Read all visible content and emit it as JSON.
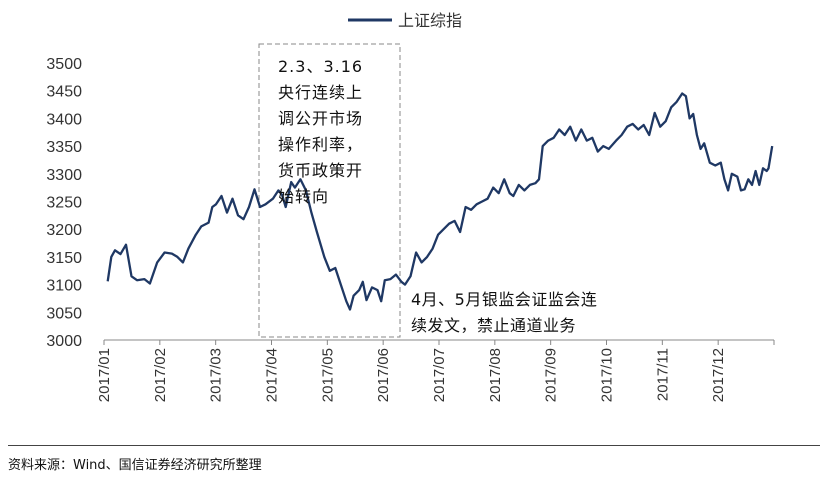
{
  "chart_data": {
    "type": "line",
    "legend": {
      "label": "上证综指",
      "position": "top-center"
    },
    "ylim": [
      3000,
      3500
    ],
    "yticks": [
      "3500",
      "3450",
      "3400",
      "3350",
      "3300",
      "3250",
      "3200",
      "3150",
      "3100",
      "3050",
      "3000"
    ],
    "xticks": [
      "2017/01",
      "2017/02",
      "2017/03",
      "2017/04",
      "2017/05",
      "2017/06",
      "2017/07",
      "2017/08",
      "2017/09",
      "2017/10",
      "2017/11",
      "2017/12"
    ],
    "color": "#1f3864",
    "series": [
      {
        "name": "上证综指",
        "points": [
          [
            "2017-01-03",
            3106
          ],
          [
            "2017-01-05",
            3150
          ],
          [
            "2017-01-07",
            3162
          ],
          [
            "2017-01-10",
            3155
          ],
          [
            "2017-01-13",
            3172
          ],
          [
            "2017-01-16",
            3115
          ],
          [
            "2017-01-19",
            3108
          ],
          [
            "2017-01-23",
            3110
          ],
          [
            "2017-01-26",
            3102
          ],
          [
            "2017-01-30",
            3140
          ],
          [
            "2017-02-03",
            3158
          ],
          [
            "2017-02-07",
            3156
          ],
          [
            "2017-02-10",
            3150
          ],
          [
            "2017-02-13",
            3140
          ],
          [
            "2017-02-16",
            3165
          ],
          [
            "2017-02-20",
            3190
          ],
          [
            "2017-02-23",
            3205
          ],
          [
            "2017-02-27",
            3212
          ],
          [
            "2017-03-01",
            3240
          ],
          [
            "2017-03-03",
            3245
          ],
          [
            "2017-03-06",
            3260
          ],
          [
            "2017-03-09",
            3230
          ],
          [
            "2017-03-12",
            3255
          ],
          [
            "2017-03-15",
            3225
          ],
          [
            "2017-03-18",
            3218
          ],
          [
            "2017-03-21",
            3240
          ],
          [
            "2017-03-24",
            3272
          ],
          [
            "2017-03-27",
            3240
          ],
          [
            "2017-03-30",
            3245
          ],
          [
            "2017-04-03",
            3255
          ],
          [
            "2017-04-06",
            3270
          ],
          [
            "2017-04-08",
            3262
          ],
          [
            "2017-04-10",
            3240
          ],
          [
            "2017-04-13",
            3285
          ],
          [
            "2017-04-15",
            3275
          ],
          [
            "2017-04-18",
            3290
          ],
          [
            "2017-04-21",
            3270
          ],
          [
            "2017-04-24",
            3230
          ],
          [
            "2017-04-27",
            3195
          ],
          [
            "2017-05-01",
            3150
          ],
          [
            "2017-05-04",
            3125
          ],
          [
            "2017-05-07",
            3130
          ],
          [
            "2017-05-10",
            3100
          ],
          [
            "2017-05-13",
            3070
          ],
          [
            "2017-05-15",
            3055
          ],
          [
            "2017-05-17",
            3080
          ],
          [
            "2017-05-20",
            3090
          ],
          [
            "2017-05-22",
            3105
          ],
          [
            "2017-05-24",
            3072
          ],
          [
            "2017-05-27",
            3095
          ],
          [
            "2017-05-30",
            3090
          ],
          [
            "2017-06-01",
            3070
          ],
          [
            "2017-06-03",
            3108
          ],
          [
            "2017-06-06",
            3110
          ],
          [
            "2017-06-09",
            3118
          ],
          [
            "2017-06-12",
            3105
          ],
          [
            "2017-06-14",
            3100
          ],
          [
            "2017-06-17",
            3115
          ],
          [
            "2017-06-20",
            3158
          ],
          [
            "2017-06-23",
            3140
          ],
          [
            "2017-06-26",
            3150
          ],
          [
            "2017-06-29",
            3165
          ],
          [
            "2017-07-02",
            3190
          ],
          [
            "2017-07-05",
            3200
          ],
          [
            "2017-07-08",
            3210
          ],
          [
            "2017-07-11",
            3215
          ],
          [
            "2017-07-14",
            3195
          ],
          [
            "2017-07-17",
            3240
          ],
          [
            "2017-07-20",
            3235
          ],
          [
            "2017-07-23",
            3245
          ],
          [
            "2017-07-26",
            3250
          ],
          [
            "2017-07-29",
            3255
          ],
          [
            "2017-08-01",
            3275
          ],
          [
            "2017-08-04",
            3265
          ],
          [
            "2017-08-07",
            3290
          ],
          [
            "2017-08-10",
            3265
          ],
          [
            "2017-08-12",
            3260
          ],
          [
            "2017-08-15",
            3280
          ],
          [
            "2017-08-18",
            3270
          ],
          [
            "2017-08-21",
            3280
          ],
          [
            "2017-08-24",
            3283
          ],
          [
            "2017-08-26",
            3290
          ],
          [
            "2017-08-28",
            3350
          ],
          [
            "2017-08-31",
            3360
          ],
          [
            "2017-09-03",
            3365
          ],
          [
            "2017-09-06",
            3380
          ],
          [
            "2017-09-09",
            3370
          ],
          [
            "2017-09-12",
            3385
          ],
          [
            "2017-09-15",
            3360
          ],
          [
            "2017-09-18",
            3380
          ],
          [
            "2017-09-21",
            3360
          ],
          [
            "2017-09-24",
            3365
          ],
          [
            "2017-09-27",
            3340
          ],
          [
            "2017-09-30",
            3350
          ],
          [
            "2017-10-03",
            3345
          ],
          [
            "2017-10-07",
            3360
          ],
          [
            "2017-10-10",
            3370
          ],
          [
            "2017-10-13",
            3385
          ],
          [
            "2017-10-16",
            3390
          ],
          [
            "2017-10-19",
            3380
          ],
          [
            "2017-10-22",
            3388
          ],
          [
            "2017-10-25",
            3370
          ],
          [
            "2017-10-28",
            3410
          ],
          [
            "2017-10-31",
            3385
          ],
          [
            "2017-11-03",
            3395
          ],
          [
            "2017-11-06",
            3420
          ],
          [
            "2017-11-09",
            3430
          ],
          [
            "2017-11-12",
            3445
          ],
          [
            "2017-11-14",
            3440
          ],
          [
            "2017-11-16",
            3400
          ],
          [
            "2017-11-18",
            3408
          ],
          [
            "2017-11-20",
            3370
          ],
          [
            "2017-11-22",
            3345
          ],
          [
            "2017-11-24",
            3355
          ],
          [
            "2017-11-27",
            3320
          ],
          [
            "2017-11-30",
            3315
          ],
          [
            "2017-12-03",
            3320
          ],
          [
            "2017-12-05",
            3290
          ],
          [
            "2017-12-07",
            3270
          ],
          [
            "2017-12-09",
            3300
          ],
          [
            "2017-12-12",
            3295
          ],
          [
            "2017-12-14",
            3270
          ],
          [
            "2017-12-16",
            3272
          ],
          [
            "2017-12-18",
            3290
          ],
          [
            "2017-12-20",
            3280
          ],
          [
            "2017-12-22",
            3305
          ],
          [
            "2017-12-24",
            3280
          ],
          [
            "2017-12-26",
            3310
          ],
          [
            "2017-12-28",
            3305
          ],
          [
            "2017-12-29",
            3310
          ],
          [
            "2017-12-31",
            3350
          ]
        ]
      }
    ],
    "annotations": [
      {
        "lines": [
          "2.3、3.16",
          "央行连续上",
          "调公开市场",
          "操作利率，",
          "货币政策开",
          "始转向"
        ]
      },
      {
        "lines": [
          "4月、5月银监会证监会连",
          "续发文，禁止通道业务"
        ]
      }
    ]
  },
  "source": "资料来源：Wind、国信证券经济研究所整理"
}
